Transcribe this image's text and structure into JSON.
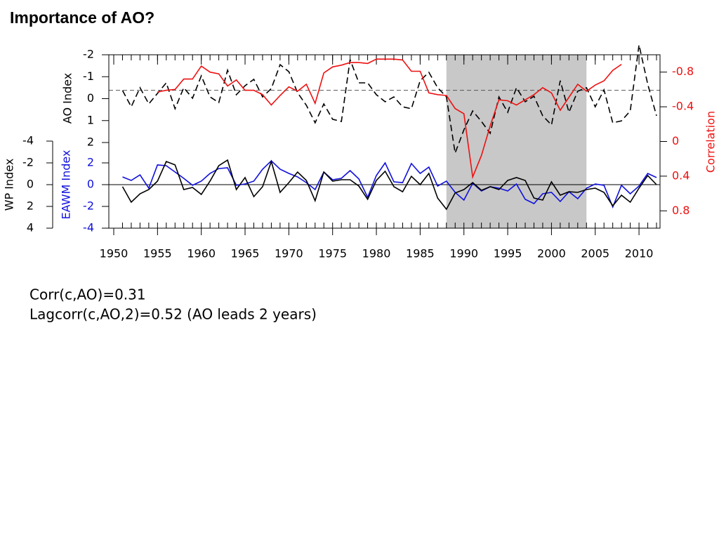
{
  "chart_data": {
    "type": "line",
    "title": "Importance of AO?",
    "x": [
      1951,
      1952,
      1953,
      1954,
      1955,
      1956,
      1957,
      1958,
      1959,
      1960,
      1961,
      1962,
      1963,
      1964,
      1965,
      1966,
      1967,
      1968,
      1969,
      1970,
      1971,
      1972,
      1973,
      1974,
      1975,
      1976,
      1977,
      1978,
      1979,
      1980,
      1981,
      1982,
      1983,
      1984,
      1985,
      1986,
      1987,
      1988,
      1989,
      1990,
      1991,
      1992,
      1993,
      1994,
      1995,
      1996,
      1997,
      1998,
      1999,
      2000,
      2001,
      2002,
      2003,
      2004,
      2005,
      2006,
      2007,
      2008,
      2009,
      2010,
      2011,
      2012
    ],
    "xlim": [
      1950,
      2012.4
    ],
    "xticks": [
      1950,
      1955,
      1960,
      1965,
      1970,
      1975,
      1980,
      1985,
      1990,
      1995,
      2000,
      2005,
      2010
    ],
    "ylabel": "AO Index",
    "ylim": [
      2,
      -2
    ],
    "yticks": [
      -2,
      -1,
      0,
      1,
      2
    ],
    "y2label": "Correlation",
    "y2color": "#ee1111",
    "y2lim": [
      1,
      -1
    ],
    "y2ticks": [
      -0.8,
      -0.4,
      0,
      0.4,
      0.8
    ],
    "y3label": "EAWM Index",
    "y3color": "#1010dd",
    "y3lim": [
      -4,
      2
    ],
    "y3ticks": [
      2,
      0,
      -2,
      -4
    ],
    "y4label": "WP Index",
    "y4lim": [
      4,
      -4
    ],
    "y4ticks": [
      -4,
      -2,
      0,
      2,
      4
    ],
    "shaded_span": [
      1988,
      2004
    ],
    "reference_line": {
      "axis": "y2",
      "value": -0.59
    },
    "zero_line": true,
    "series": [
      {
        "axis": "y",
        "color": "#000000",
        "dashed": true,
        "values": [
          -0.37,
          0.37,
          -0.5,
          0.24,
          -0.24,
          -0.72,
          0.46,
          -0.5,
          -0.02,
          -1.04,
          -0.08,
          0.18,
          -1.3,
          -0.18,
          -0.59,
          -0.88,
          -0.08,
          -0.46,
          -1.55,
          -1.23,
          -0.27,
          0.3,
          1.1,
          0.24,
          0.94,
          1.04,
          -1.78,
          -0.72,
          -0.72,
          -0.18,
          0.14,
          -0.08,
          0.37,
          0.46,
          -0.82,
          -1.2,
          -0.5,
          -0.08,
          2.48,
          1.42,
          0.56,
          1.04,
          1.58,
          -0.08,
          0.62,
          -0.5,
          0.14,
          -0.11,
          0.78,
          1.2,
          -0.82,
          0.62,
          -0.34,
          -0.5,
          0.37,
          -0.4,
          1.1,
          1.01,
          0.56,
          -2.45,
          -0.66,
          0.78
        ]
      },
      {
        "axis": "y2",
        "color": "#ee1111",
        "dashed": false,
        "values": [
          null,
          null,
          null,
          null,
          -0.57,
          -0.59,
          -0.6,
          -0.72,
          -0.72,
          -0.87,
          -0.8,
          -0.78,
          -0.64,
          -0.71,
          -0.59,
          -0.59,
          -0.54,
          -0.42,
          -0.53,
          -0.63,
          -0.58,
          -0.66,
          -0.44,
          -0.79,
          -0.86,
          -0.88,
          -0.91,
          -0.91,
          -0.9,
          -0.95,
          -0.95,
          -0.95,
          -0.94,
          -0.81,
          -0.81,
          -0.56,
          -0.54,
          -0.53,
          -0.38,
          -0.32,
          0.41,
          0.16,
          -0.18,
          -0.48,
          -0.47,
          -0.42,
          -0.48,
          -0.54,
          -0.62,
          -0.56,
          -0.36,
          -0.51,
          -0.66,
          -0.58,
          -0.65,
          -0.7,
          -0.82,
          -0.89,
          null,
          null,
          null,
          null
        ]
      },
      {
        "axis": "y3",
        "color": "#1010dd",
        "dashed": false,
        "values": [
          0.71,
          0.39,
          0.9,
          -0.32,
          1.81,
          1.74,
          1.16,
          0.58,
          -0.06,
          0.32,
          1.03,
          1.48,
          1.55,
          -0.06,
          0.06,
          0.32,
          1.42,
          2.19,
          1.42,
          1.03,
          0.71,
          0.19,
          -0.45,
          1.16,
          0.45,
          0.58,
          1.29,
          0.52,
          -1.16,
          0.84,
          2.0,
          0.26,
          0.19,
          1.94,
          1.03,
          1.61,
          -0.13,
          0.32,
          -0.71,
          -1.42,
          0.13,
          -0.58,
          -0.19,
          -0.32,
          -0.58,
          0.06,
          -1.35,
          -1.74,
          -0.84,
          -0.71,
          -1.55,
          -0.65,
          -1.29,
          -0.32,
          0.06,
          -0.06,
          -2.06,
          -0.06,
          -0.84,
          -0.13,
          1.03,
          0.65
        ]
      },
      {
        "axis": "y4",
        "color": "#000000",
        "dashed": false,
        "values": [
          0.19,
          1.61,
          0.84,
          0.45,
          -0.32,
          -2.13,
          -1.81,
          0.45,
          0.26,
          0.9,
          -0.32,
          -1.74,
          -2.26,
          0.45,
          -0.65,
          1.1,
          0.19,
          -2.13,
          0.71,
          -0.19,
          -1.16,
          -0.39,
          1.48,
          -1.16,
          -0.32,
          -0.45,
          -0.45,
          0.13,
          1.35,
          -0.39,
          -1.23,
          0.19,
          0.65,
          -0.77,
          0,
          -1.03,
          1.23,
          2.26,
          0.77,
          0.45,
          -0.19,
          0.52,
          0.19,
          0.45,
          -0.39,
          -0.65,
          -0.39,
          1.23,
          1.42,
          -0.26,
          0.97,
          0.65,
          0.71,
          0.45,
          0.32,
          0.71,
          1.94,
          0.97,
          1.61,
          0.32,
          -0.84,
          0
        ]
      }
    ],
    "annotations": [
      "Corr(c,AO)=0.31",
      "Lagcorr(c,AO,2)=0.52 (AO leads 2 years)"
    ]
  }
}
